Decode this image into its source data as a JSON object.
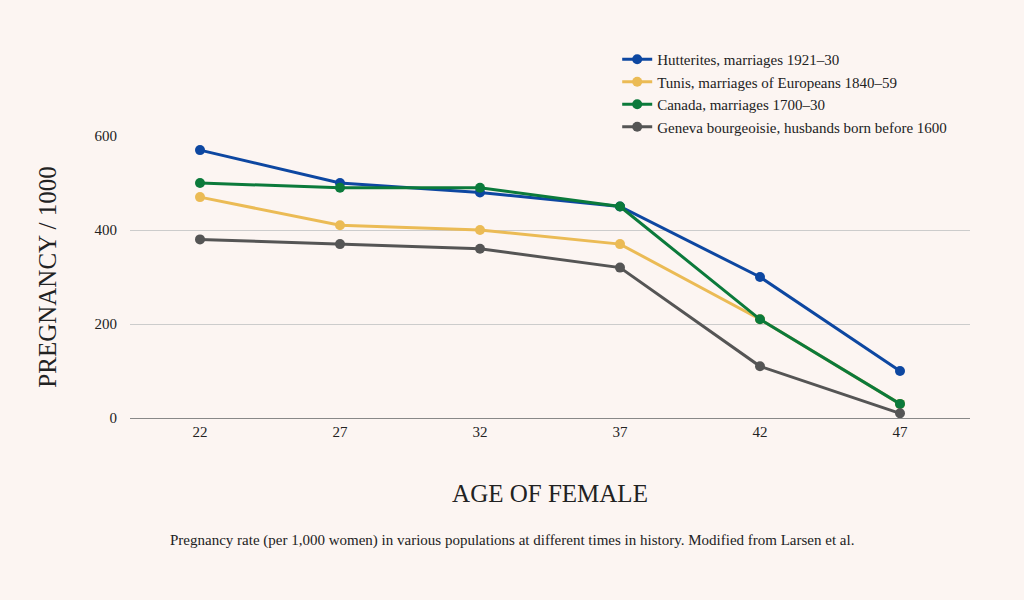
{
  "chart_data": {
    "type": "line",
    "x_label": "AGE OF FEMALE",
    "y_label": "PREGNANCY / 1000",
    "caption": "Pregnancy rate (per 1,000 women) in various populations at different times in history. Modified from Larsen et al.",
    "x": [
      22,
      27,
      32,
      37,
      42,
      47
    ],
    "xlim": [
      19.5,
      49.5
    ],
    "xticks": [
      22,
      27,
      32,
      37,
      42,
      47
    ],
    "ylim": [
      0,
      600
    ],
    "yticks": [
      0,
      200,
      400,
      600
    ],
    "grid": true,
    "legend": "top right",
    "marker": "circle",
    "line_style": "solid",
    "series": [
      {
        "name": "Hutterites, marriages 1921–30",
        "color": "#0d47a1",
        "values": [
          570,
          500,
          480,
          450,
          300,
          100
        ]
      },
      {
        "name": "Tunis, marriages of Europeans 1840–59",
        "color": "#ebbb55",
        "values": [
          470,
          410,
          400,
          370,
          210,
          30
        ]
      },
      {
        "name": "Canada, marriages 1700–30",
        "color": "#0b7a3b",
        "values": [
          500,
          490,
          490,
          450,
          210,
          30
        ]
      },
      {
        "name": "Geneva bourgeoisie, husbands born before 1600",
        "color": "#555555",
        "values": [
          380,
          370,
          360,
          320,
          110,
          10
        ]
      }
    ]
  }
}
